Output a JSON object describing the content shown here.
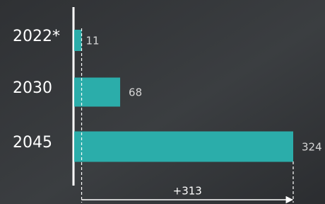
{
  "chart_data": {
    "type": "barh",
    "categories": [
      "2022*",
      "2030",
      "2045"
    ],
    "values": [
      11,
      68,
      324
    ],
    "color": "#2badaa",
    "annotation": "+313"
  }
}
